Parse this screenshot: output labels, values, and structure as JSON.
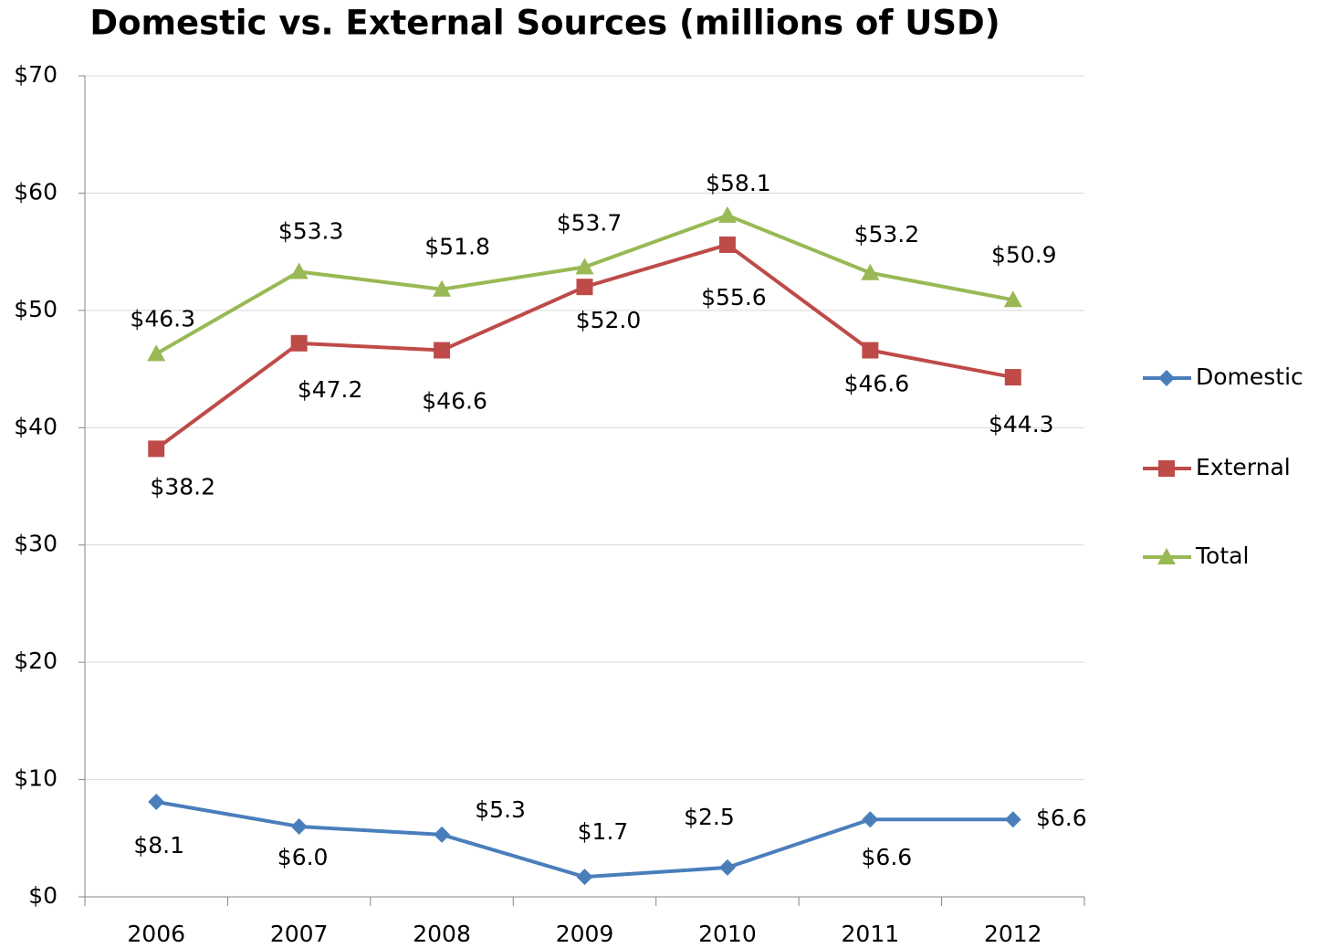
{
  "chart_data": {
    "type": "line",
    "title": "Domestic vs. External Sources (millions of USD)",
    "categories": [
      "2006",
      "2007",
      "2008",
      "2009",
      "2010",
      "2011",
      "2012"
    ],
    "series": [
      {
        "name": "Domestic",
        "color": "#4a7ebb",
        "marker": "diamond",
        "values": [
          8.1,
          6.0,
          5.3,
          1.7,
          2.5,
          6.6,
          6.6
        ],
        "value_labels": [
          "$8.1",
          "$6.0",
          "$5.3",
          "$1.7",
          "$2.5",
          "$6.6",
          "$6.6"
        ]
      },
      {
        "name": "External",
        "color": "#be4b48",
        "marker": "square",
        "values": [
          38.2,
          47.2,
          46.6,
          52.0,
          55.6,
          46.6,
          44.3
        ],
        "value_labels": [
          "$38.2",
          "$47.2",
          "$46.6",
          "$52.0",
          "$55.6",
          "$46.6",
          "$44.3"
        ]
      },
      {
        "name": "Total",
        "color": "#98b954",
        "marker": "triangle",
        "values": [
          46.3,
          53.3,
          51.8,
          53.7,
          58.1,
          53.2,
          50.9
        ],
        "value_labels": [
          "$46.3",
          "$53.3",
          "$51.8",
          "$53.7",
          "$58.1",
          "$53.2",
          "$50.9"
        ]
      }
    ],
    "ylim": [
      0,
      70
    ],
    "yticks": [
      {
        "value": 0,
        "label": "$0"
      },
      {
        "value": 10,
        "label": "$10"
      },
      {
        "value": 20,
        "label": "$20"
      },
      {
        "value": 30,
        "label": "$30"
      },
      {
        "value": 40,
        "label": "$40"
      },
      {
        "value": 50,
        "label": "$50"
      },
      {
        "value": 60,
        "label": "$60"
      },
      {
        "value": 70,
        "label": "$70"
      }
    ],
    "grid": true,
    "legend": "right"
  }
}
